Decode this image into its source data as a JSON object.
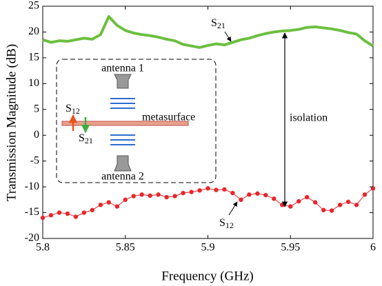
{
  "chart_data": {
    "type": "line",
    "xlabel": "Frequency (GHz)",
    "ylabel": "Transmission Magnitude (dB)",
    "xlim": [
      5.8,
      6
    ],
    "xticks": [
      5.8,
      5.85,
      5.9,
      5.95,
      6
    ],
    "ylim": [
      -20,
      25
    ],
    "yticks": [
      -20,
      -15,
      -10,
      -5,
      0,
      5,
      10,
      15,
      20,
      25
    ],
    "grid": false,
    "x": [
      5.8,
      5.805,
      5.81,
      5.815,
      5.82,
      5.825,
      5.83,
      5.835,
      5.84,
      5.845,
      5.85,
      5.855,
      5.86,
      5.865,
      5.87,
      5.875,
      5.88,
      5.885,
      5.89,
      5.895,
      5.9,
      5.905,
      5.91,
      5.915,
      5.92,
      5.925,
      5.93,
      5.935,
      5.94,
      5.945,
      5.95,
      5.955,
      5.96,
      5.965,
      5.97,
      5.975,
      5.98,
      5.985,
      5.99,
      5.995,
      6
    ],
    "series": [
      {
        "color": "#6bbf3f",
        "marker": false,
        "values": [
          18.5,
          18.0,
          18.3,
          18.2,
          18.5,
          18.8,
          18.6,
          19.5,
          23.0,
          21.3,
          20.3,
          19.8,
          19.5,
          19.3,
          19.0,
          18.6,
          18.3,
          17.6,
          17.3,
          17.0,
          17.4,
          17.7,
          17.5,
          18.0,
          18.5,
          18.8,
          19.3,
          19.7,
          20.0,
          20.2,
          20.3,
          20.5,
          20.9,
          21.0,
          20.8,
          20.6,
          20.3,
          19.9,
          19.6,
          18.3,
          17.3
        ]
      },
      {
        "color": "#e8262b",
        "marker": true,
        "values": [
          -16.0,
          -15.5,
          -15.0,
          -15.2,
          -15.8,
          -15.0,
          -14.5,
          -13.5,
          -13.0,
          -13.8,
          -12.5,
          -11.8,
          -11.5,
          -11.7,
          -11.5,
          -12.0,
          -11.8,
          -11.2,
          -11.0,
          -10.7,
          -10.3,
          -10.6,
          -10.5,
          -11.2,
          -12.5,
          -11.5,
          -11.3,
          -11.6,
          -12.3,
          -13.5,
          -13.8,
          -12.8,
          -12.0,
          -13.0,
          -14.5,
          -14.6,
          -13.5,
          -12.9,
          -13.5,
          -11.5,
          -10.3
        ]
      }
    ],
    "annotations": [
      {
        "text": "S",
        "sub": "21"
      },
      {
        "text": "S",
        "sub": "12"
      },
      {
        "text": "isolation"
      }
    ],
    "inset": {
      "antenna_top": "antenna 1",
      "antenna_bottom": "antenna 2",
      "surface": "metasurface",
      "up": {
        "text": "S",
        "sub": "12"
      },
      "down": {
        "text": "S",
        "sub": "21"
      }
    }
  }
}
